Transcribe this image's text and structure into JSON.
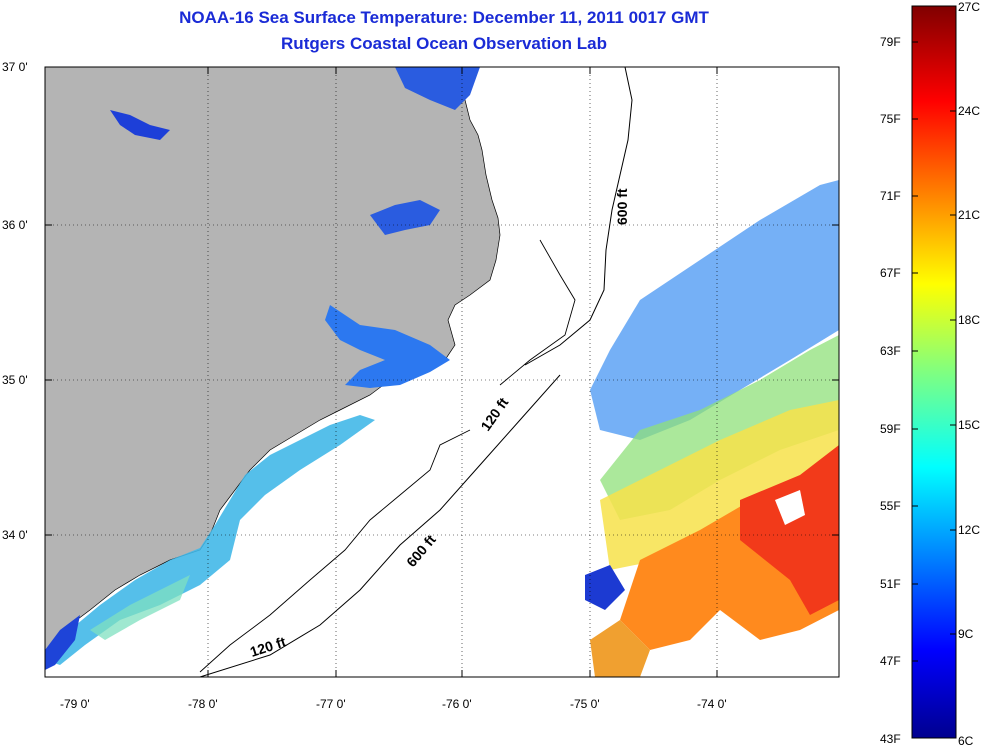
{
  "header": {
    "title_line1": "NOAA-16 Sea Surface Temperature:  December 11, 2011 0017 GMT",
    "title_line2": "Rutgers Coastal Ocean Observation Lab"
  },
  "map": {
    "lat_ticks": [
      "37 0'",
      "36 0'",
      "35 0'",
      "34 0'"
    ],
    "lon_ticks": [
      "-79 0'",
      "-78 0'",
      "-77 0'",
      "-76 0'",
      "-75 0'",
      "-74 0'"
    ],
    "contour_labels": [
      "600 ft",
      "120 ft",
      "600 ft",
      "120 ft"
    ],
    "colors": {
      "land": "#b4b4b4",
      "ocean": "#ffffff",
      "title": "#1a2bd6"
    }
  },
  "colorbar": {
    "f_labels": [
      "79F",
      "75F",
      "71F",
      "67F",
      "63F",
      "59F",
      "55F",
      "51F",
      "47F",
      "43F"
    ],
    "c_labels": [
      "27C",
      "24C",
      "21C",
      "18C",
      "15C",
      "12C",
      "9C",
      "6C"
    ],
    "colormap": "jet"
  }
}
